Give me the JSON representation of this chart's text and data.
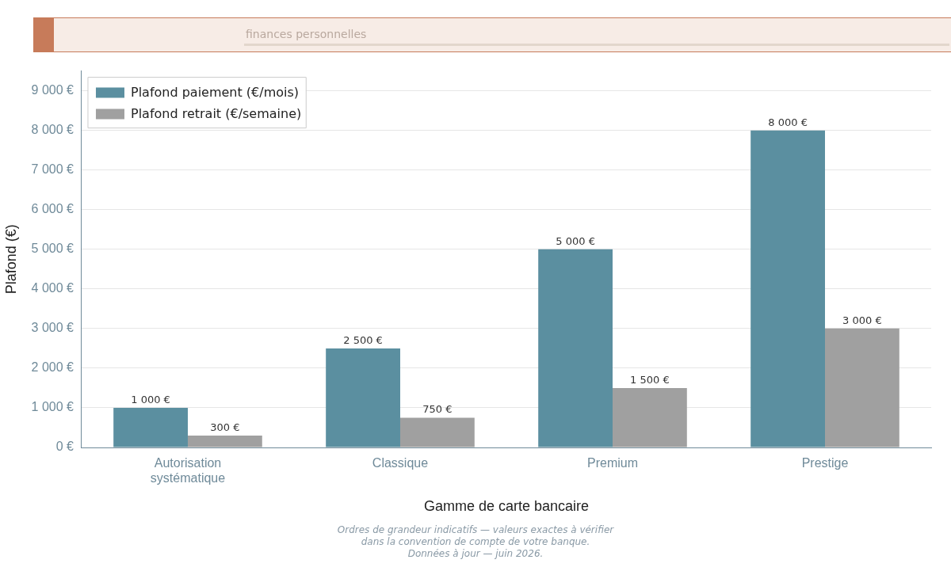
{
  "chart_data": {
    "type": "bar",
    "subtitle": "finances personnelles",
    "xlabel": "Gamme de carte bancaire",
    "ylabel": "Plafond (€)",
    "categories": [
      "Autorisation systématique",
      "Classique",
      "Premium",
      "Prestige"
    ],
    "series": [
      {
        "name": "Plafond paiement (€/mois)",
        "color": "#5b8fa0",
        "values": [
          1000,
          2500,
          5000,
          8000
        ],
        "value_labels": [
          "1 000 €",
          "2 500 €",
          "5 000 €",
          "8 000 €"
        ]
      },
      {
        "name": "Plafond retrait (€/semaine)",
        "color": "#a0a0a0",
        "values": [
          300,
          750,
          1500,
          3000
        ],
        "value_labels": [
          "300 €",
          "750 €",
          "1 500 €",
          "3 000 €"
        ]
      }
    ],
    "ylim": [
      0,
      9500
    ],
    "yticks": [
      {
        "value": 0,
        "label": "0 €"
      },
      {
        "value": 1000,
        "label": "1 000 €"
      },
      {
        "value": 2000,
        "label": "2 000 €"
      },
      {
        "value": 3000,
        "label": "3 000 €"
      },
      {
        "value": 4000,
        "label": "4 000 €"
      },
      {
        "value": 5000,
        "label": "5 000 €"
      },
      {
        "value": 6000,
        "label": "6 000 €"
      },
      {
        "value": 7000,
        "label": "7 000 €"
      },
      {
        "value": 8000,
        "label": "8 000 €"
      },
      {
        "value": 9000,
        "label": "9 000 €"
      }
    ],
    "grid": "y",
    "legend": "top left",
    "annotations": [
      "Ordres de grandeur indicatifs — valeurs exactes à vérifier dans la convention de compte de votre banque.",
      "Données à jour — juin 2026."
    ]
  }
}
